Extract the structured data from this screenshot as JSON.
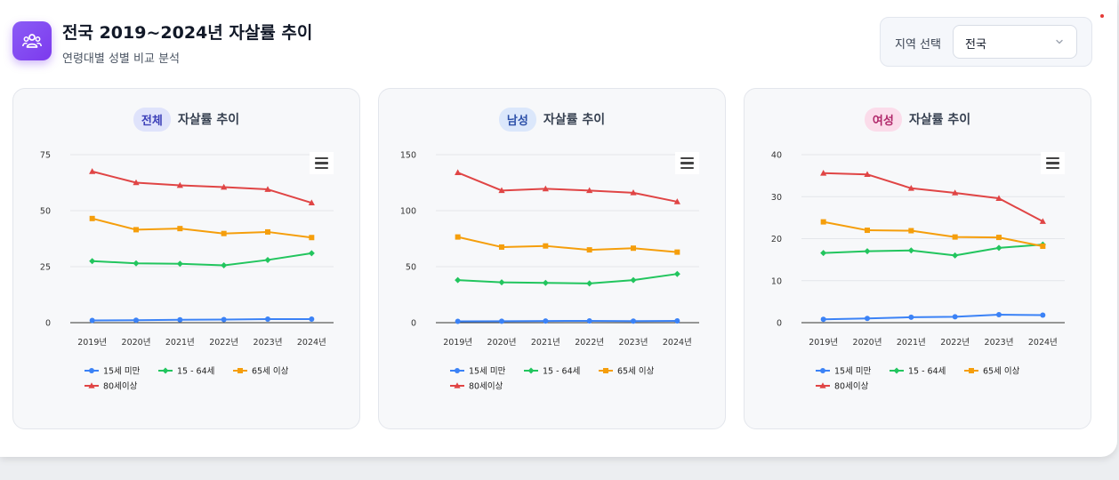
{
  "header": {
    "title": "전국 2019~2024년 자살률 추이",
    "subtitle": "연령대별 성별 비교 분석",
    "app_icon": "people-group-icon"
  },
  "region": {
    "label": "지역 선택",
    "selected": "전국"
  },
  "panels": [
    {
      "pill": "전체",
      "title": "자살률 추이",
      "pill_bg": "#dfe3fb",
      "pill_color": "#3b3fb8"
    },
    {
      "pill": "남성",
      "title": "자살률 추이",
      "pill_bg": "#dbe7fb",
      "pill_color": "#2b4fa8"
    },
    {
      "pill": "여성",
      "title": "자살률 추이",
      "pill_bg": "#fbdcea",
      "pill_color": "#b0286a"
    }
  ],
  "colors": {
    "under15": "#3b82f6",
    "age15_64": "#22c55e",
    "age65plus": "#f59e0b",
    "age80plus": "#e04545"
  },
  "chart_data": [
    {
      "type": "line",
      "title": "전체 자살률 추이",
      "categories": [
        "2019년",
        "2020년",
        "2021년",
        "2022년",
        "2023년",
        "2024년"
      ],
      "ylim": [
        0,
        75
      ],
      "yticks": [
        "0",
        "25",
        "50",
        "75"
      ],
      "series": [
        {
          "name": "15세 미만",
          "values": [
            1.0,
            1.1,
            1.3,
            1.4,
            1.6,
            1.6
          ]
        },
        {
          "name": "15 - 64세",
          "values": [
            27.5,
            26.5,
            26.3,
            25.6,
            28.0,
            31.0
          ]
        },
        {
          "name": "65세 이상",
          "values": [
            46.5,
            41.5,
            42.0,
            39.8,
            40.5,
            38.0
          ]
        },
        {
          "name": "80세이상",
          "values": [
            67.5,
            62.5,
            61.3,
            60.5,
            59.5,
            53.5
          ]
        }
      ]
    },
    {
      "type": "line",
      "title": "남성 자살률 추이",
      "categories": [
        "2019년",
        "2020년",
        "2021년",
        "2022년",
        "2023년",
        "2024년"
      ],
      "ylim": [
        0,
        150
      ],
      "yticks": [
        "0",
        "50",
        "100",
        "150"
      ],
      "series": [
        {
          "name": "15세 미만",
          "values": [
            1.2,
            1.3,
            1.5,
            1.6,
            1.4,
            1.6
          ]
        },
        {
          "name": "15 - 64세",
          "values": [
            38.0,
            36.0,
            35.5,
            35.0,
            38.0,
            43.5
          ]
        },
        {
          "name": "65세 이상",
          "values": [
            76.5,
            67.5,
            68.5,
            65.0,
            66.5,
            63.0
          ]
        },
        {
          "name": "80세이상",
          "values": [
            134.0,
            118.0,
            119.5,
            118.0,
            116.0,
            108.0
          ]
        }
      ]
    },
    {
      "type": "line",
      "title": "여성 자살률 추이",
      "categories": [
        "2019년",
        "2020년",
        "2021년",
        "2022년",
        "2023년",
        "2024년"
      ],
      "ylim": [
        0,
        40
      ],
      "yticks": [
        "0",
        "10",
        "20",
        "30",
        "40"
      ],
      "series": [
        {
          "name": "15세 미만",
          "values": [
            0.8,
            1.0,
            1.3,
            1.4,
            1.9,
            1.8
          ]
        },
        {
          "name": "15 - 64세",
          "values": [
            16.6,
            17.0,
            17.2,
            16.0,
            17.8,
            18.6
          ]
        },
        {
          "name": "65세 이상",
          "values": [
            24.0,
            22.0,
            21.9,
            20.4,
            20.3,
            18.2
          ]
        },
        {
          "name": "80세이상",
          "values": [
            35.6,
            35.3,
            32.0,
            30.9,
            29.6,
            24.1
          ]
        }
      ]
    }
  ]
}
